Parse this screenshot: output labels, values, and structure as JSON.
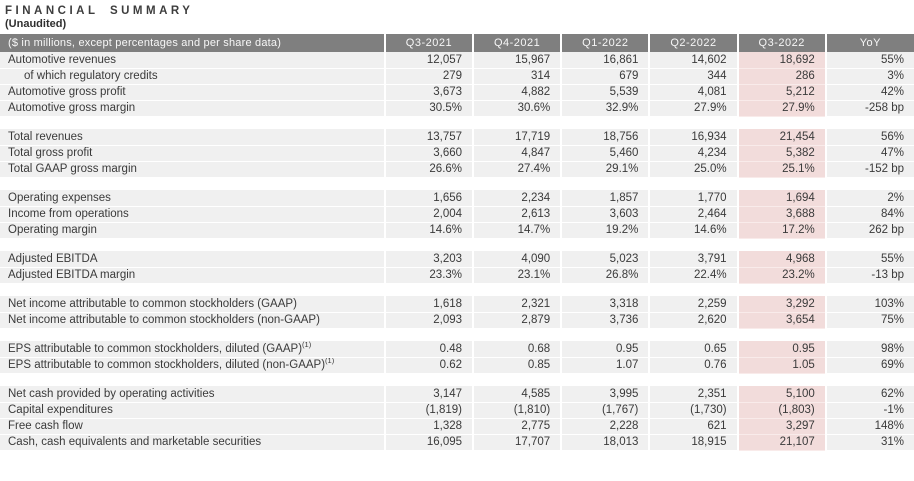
{
  "title": "FINANCIAL SUMMARY",
  "subtitle": "(Unaudited)",
  "colors": {
    "header_bg": "#7f7f7f",
    "header_text": "#f7f7f7",
    "row_bg": "#f0f0f0",
    "highlight_bg": "#f2dcdb",
    "body_text": "#3a3a3a"
  },
  "table": {
    "label_header": "($ in millions, except percentages and per share data)",
    "columns": [
      "Q3-2021",
      "Q4-2021",
      "Q1-2022",
      "Q2-2022",
      "Q3-2022",
      "YoY"
    ],
    "highlight_column": "Q3-2022",
    "highlight_column_index": 4,
    "sections": [
      {
        "rows": [
          {
            "label": "Automotive revenues",
            "values": [
              "12,057",
              "15,967",
              "16,861",
              "14,602",
              "18,692",
              "55%"
            ]
          },
          {
            "label": "of which regulatory credits",
            "indent": true,
            "values": [
              "279",
              "314",
              "679",
              "344",
              "286",
              "3%"
            ]
          },
          {
            "label": "Automotive gross profit",
            "values": [
              "3,673",
              "4,882",
              "5,539",
              "4,081",
              "5,212",
              "42%"
            ]
          },
          {
            "label": "Automotive gross margin",
            "values": [
              "30.5%",
              "30.6%",
              "32.9%",
              "27.9%",
              "27.9%",
              "-258 bp"
            ]
          }
        ]
      },
      {
        "rows": [
          {
            "label": "Total revenues",
            "values": [
              "13,757",
              "17,719",
              "18,756",
              "16,934",
              "21,454",
              "56%"
            ]
          },
          {
            "label": "Total gross profit",
            "values": [
              "3,660",
              "4,847",
              "5,460",
              "4,234",
              "5,382",
              "47%"
            ]
          },
          {
            "label": "Total GAAP gross margin",
            "values": [
              "26.6%",
              "27.4%",
              "29.1%",
              "25.0%",
              "25.1%",
              "-152 bp"
            ]
          }
        ]
      },
      {
        "rows": [
          {
            "label": "Operating expenses",
            "values": [
              "1,656",
              "2,234",
              "1,857",
              "1,770",
              "1,694",
              "2%"
            ]
          },
          {
            "label": "Income from operations",
            "values": [
              "2,004",
              "2,613",
              "3,603",
              "2,464",
              "3,688",
              "84%"
            ]
          },
          {
            "label": "Operating margin",
            "values": [
              "14.6%",
              "14.7%",
              "19.2%",
              "14.6%",
              "17.2%",
              "262 bp"
            ]
          }
        ]
      },
      {
        "rows": [
          {
            "label": "Adjusted EBITDA",
            "values": [
              "3,203",
              "4,090",
              "5,023",
              "3,791",
              "4,968",
              "55%"
            ]
          },
          {
            "label": "Adjusted EBITDA margin",
            "values": [
              "23.3%",
              "23.1%",
              "26.8%",
              "22.4%",
              "23.2%",
              "-13 bp"
            ]
          }
        ]
      },
      {
        "rows": [
          {
            "label": "Net income attributable to common stockholders (GAAP)",
            "values": [
              "1,618",
              "2,321",
              "3,318",
              "2,259",
              "3,292",
              "103%"
            ]
          },
          {
            "label": "Net income attributable to common stockholders (non-GAAP)",
            "values": [
              "2,093",
              "2,879",
              "3,736",
              "2,620",
              "3,654",
              "75%"
            ]
          }
        ]
      },
      {
        "rows": [
          {
            "label": "EPS attributable to common stockholders, diluted (GAAP)",
            "sup": "(1)",
            "values": [
              "0.48",
              "0.68",
              "0.95",
              "0.65",
              "0.95",
              "98%"
            ]
          },
          {
            "label": "EPS attributable to common stockholders, diluted (non-GAAP)",
            "sup": "(1)",
            "values": [
              "0.62",
              "0.85",
              "1.07",
              "0.76",
              "1.05",
              "69%"
            ]
          }
        ]
      },
      {
        "rows": [
          {
            "label": "Net cash provided by operating activities",
            "values": [
              "3,147",
              "4,585",
              "3,995",
              "2,351",
              "5,100",
              "62%"
            ]
          },
          {
            "label": "Capital expenditures",
            "values": [
              "(1,819)",
              "(1,810)",
              "(1,767)",
              "(1,730)",
              "(1,803)",
              "-1%"
            ]
          },
          {
            "label": "Free cash flow",
            "values": [
              "1,328",
              "2,775",
              "2,228",
              "621",
              "3,297",
              "148%"
            ]
          },
          {
            "label": "Cash, cash equivalents and marketable securities",
            "values": [
              "16,095",
              "17,707",
              "18,013",
              "18,915",
              "21,107",
              "31%"
            ]
          }
        ]
      }
    ]
  }
}
